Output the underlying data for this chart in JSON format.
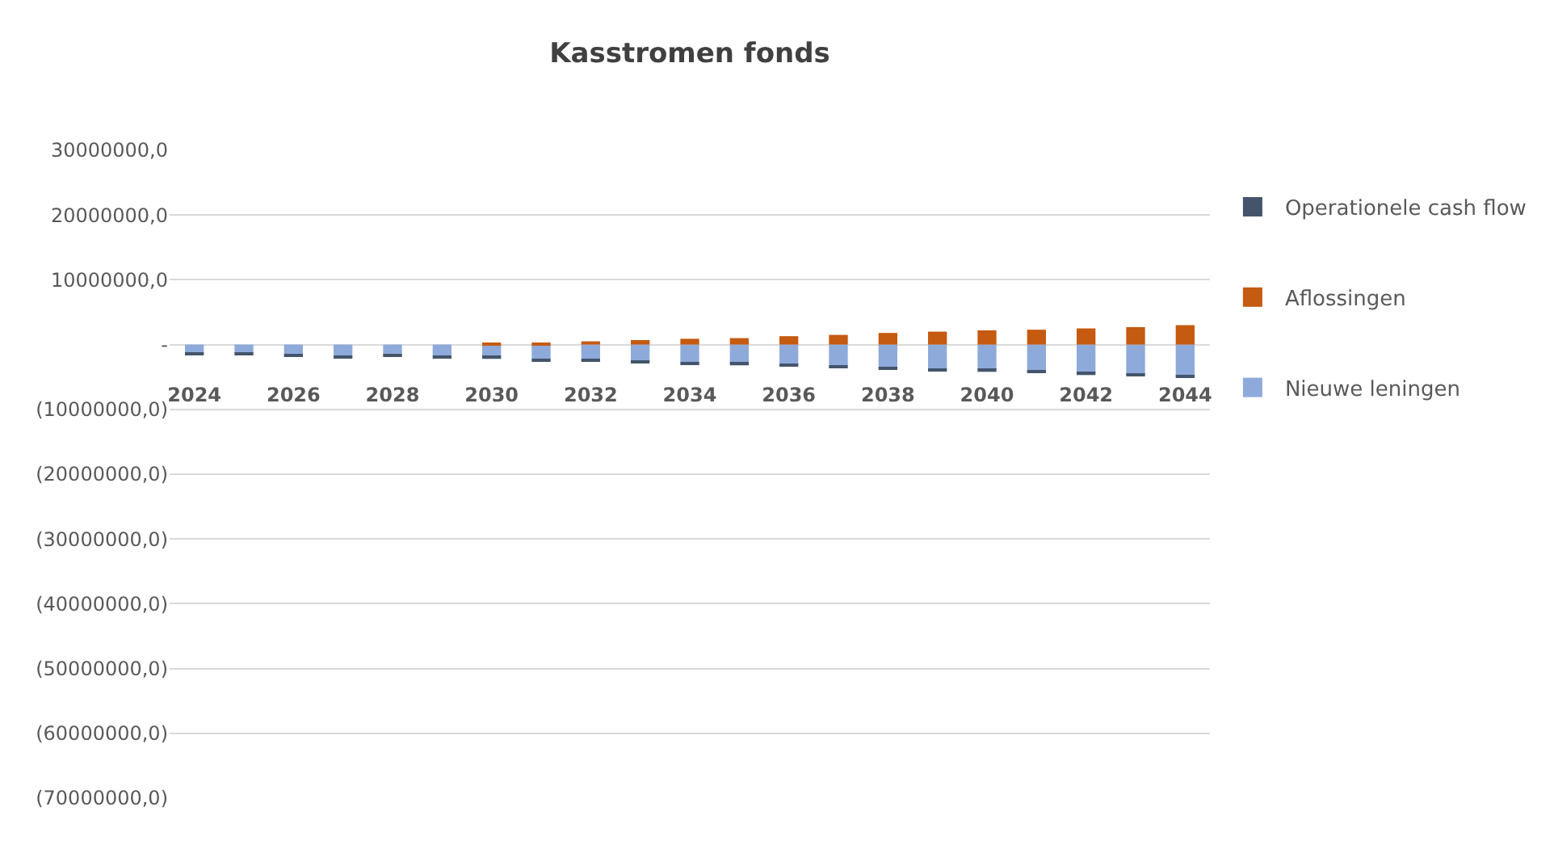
{
  "chart_data": {
    "type": "bar",
    "title": "Kasstromen fonds",
    "stacked": true,
    "categories": [
      "2024",
      null,
      "2026",
      null,
      "2028",
      null,
      "2030",
      null,
      "2032",
      null,
      "2034",
      null,
      "2036",
      null,
      "2038",
      null,
      "2040",
      null,
      "2042",
      null,
      "2044"
    ],
    "series": [
      {
        "name": "Nieuwe leningen",
        "color": "#8eaadb",
        "values": [
          -1300000,
          -1300000,
          -1500000,
          -1700000,
          -1600000,
          -1800000,
          -1900000,
          -2200000,
          -2300000,
          -2500000,
          -2700000,
          -2900000,
          -3100000,
          -3300000,
          -3500000,
          -3700000,
          -3900000,
          -4100000,
          -4400000,
          -4600000,
          -4800000
        ]
      },
      {
        "name": "Aflossingen",
        "color": "#c55a11",
        "values": [
          0,
          0,
          0,
          0,
          0,
          0,
          100000,
          300000,
          500000,
          700000,
          900000,
          1000000,
          1300000,
          1500000,
          1800000,
          2000000,
          2200000,
          2300000,
          2500000,
          2700000,
          3000000
        ]
      },
      {
        "name": "Operationele cash flow",
        "color": "#44546a",
        "values": [
          -300000,
          -300000,
          -300000,
          -300000,
          -300000,
          -300000,
          -300000,
          -300000,
          -300000,
          -300000,
          -300000,
          -300000,
          -300000,
          -300000,
          -300000,
          -300000,
          -300000,
          -300000,
          -300000,
          -300000,
          -300000
        ]
      }
    ],
    "ylim": [
      -70000000,
      30000000
    ],
    "yticks": [
      {
        "value": 30000000,
        "label": "30000000,0"
      },
      {
        "value": 20000000,
        "label": "20000000,0"
      },
      {
        "value": 10000000,
        "label": "10000000,0"
      },
      {
        "value": 0,
        "label": "-"
      },
      {
        "value": -10000000,
        "label": "(10000000,0)"
      },
      {
        "value": -20000000,
        "label": "(20000000,0)"
      },
      {
        "value": -30000000,
        "label": "(30000000,0)"
      },
      {
        "value": -40000000,
        "label": "(40000000,0)"
      },
      {
        "value": -50000000,
        "label": "(50000000,0)"
      },
      {
        "value": -60000000,
        "label": "(60000000,0)"
      },
      {
        "value": -70000000,
        "label": "(70000000,0)"
      }
    ],
    "grid": "y",
    "legend": "right"
  }
}
